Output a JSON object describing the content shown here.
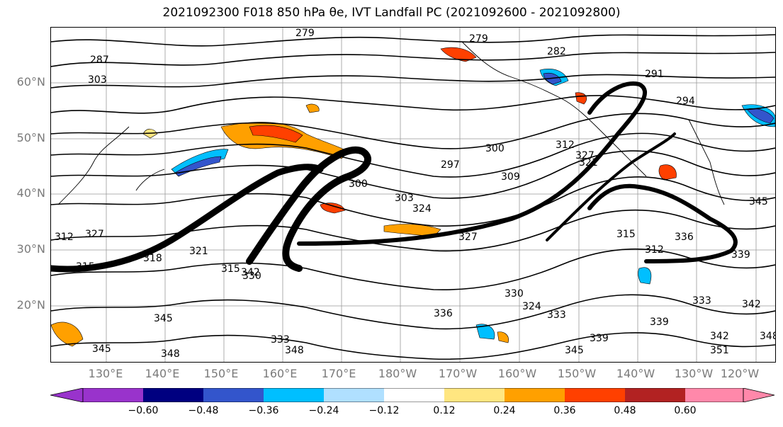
{
  "title": "2021092300 F018 850 hPa θe, IVT Landfall PC (2021092600 - 2021092800)",
  "lat_labels": [
    "60°N",
    "50°N",
    "40°N",
    "30°N",
    "20°N"
  ],
  "lon_labels": [
    "130°E",
    "140°E",
    "150°E",
    "160°E",
    "170°E",
    "180°W",
    "170°W",
    "160°W",
    "150°W",
    "140°W",
    "130°W",
    "120°W"
  ],
  "contour_labels": [
    "279",
    "279",
    "282",
    "291",
    "294",
    "303",
    "287",
    "297",
    "300",
    "300",
    "303",
    "309",
    "312",
    "315",
    "321",
    "327",
    "333",
    "339",
    "342",
    "345",
    "345",
    "348",
    "312",
    "315",
    "324",
    "327",
    "330",
    "333",
    "336",
    "339",
    "342",
    "345",
    "348",
    "351",
    "312",
    "315",
    "318",
    "321",
    "324",
    "327",
    "330",
    "333",
    "336",
    "339",
    "342",
    "345",
    "348"
  ],
  "colorbar": {
    "colors": [
      "#9933cc",
      "#000080",
      "#3355cc",
      "#00bfff",
      "#b0e0ff",
      "#ffffff",
      "#ffe680",
      "#ffa000",
      "#ff4000",
      "#b22222",
      "#ff88aa"
    ],
    "ticks": [
      "−0.60",
      "−0.48",
      "−0.36",
      "−0.24",
      "−0.12",
      "0.12",
      "0.24",
      "0.36",
      "0.48",
      "0.60"
    ]
  }
}
